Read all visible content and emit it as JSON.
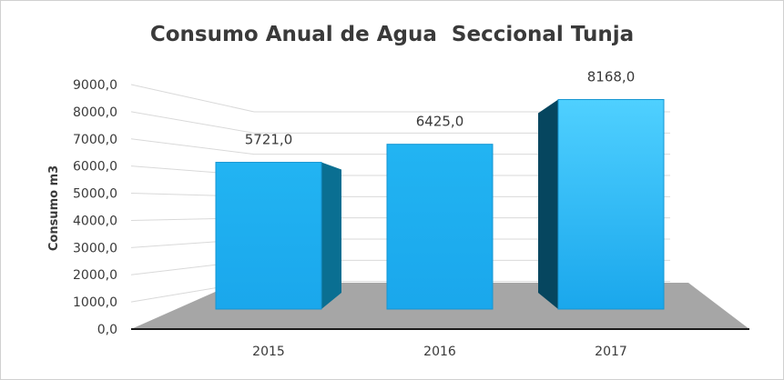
{
  "chart_data": {
    "type": "bar",
    "title": "Consumo Anual de Agua  Seccional Tunja",
    "xlabel": "",
    "ylabel": "Consumo m3",
    "categories": [
      "2015",
      "2016",
      "2017"
    ],
    "values": [
      5721.0,
      6425.0,
      8168.0
    ],
    "data_labels": [
      "5721,0",
      "6425,0",
      "8168,0"
    ],
    "ylim": [
      0,
      9000
    ],
    "yticks": [
      "0,0",
      "1000,0",
      "2000,0",
      "3000,0",
      "4000,0",
      "5000,0",
      "6000,0",
      "7000,0",
      "8000,0",
      "9000,0"
    ],
    "grid": true,
    "style": "3d-column",
    "colors": {
      "bar_front": "#1aa7ec",
      "bar_side": "#0a6f92",
      "bar_top": "#4fd0ff",
      "floor": "#a6a6a6",
      "gridline": "#d9d9d9",
      "axis": "#1a1a1a"
    }
  }
}
